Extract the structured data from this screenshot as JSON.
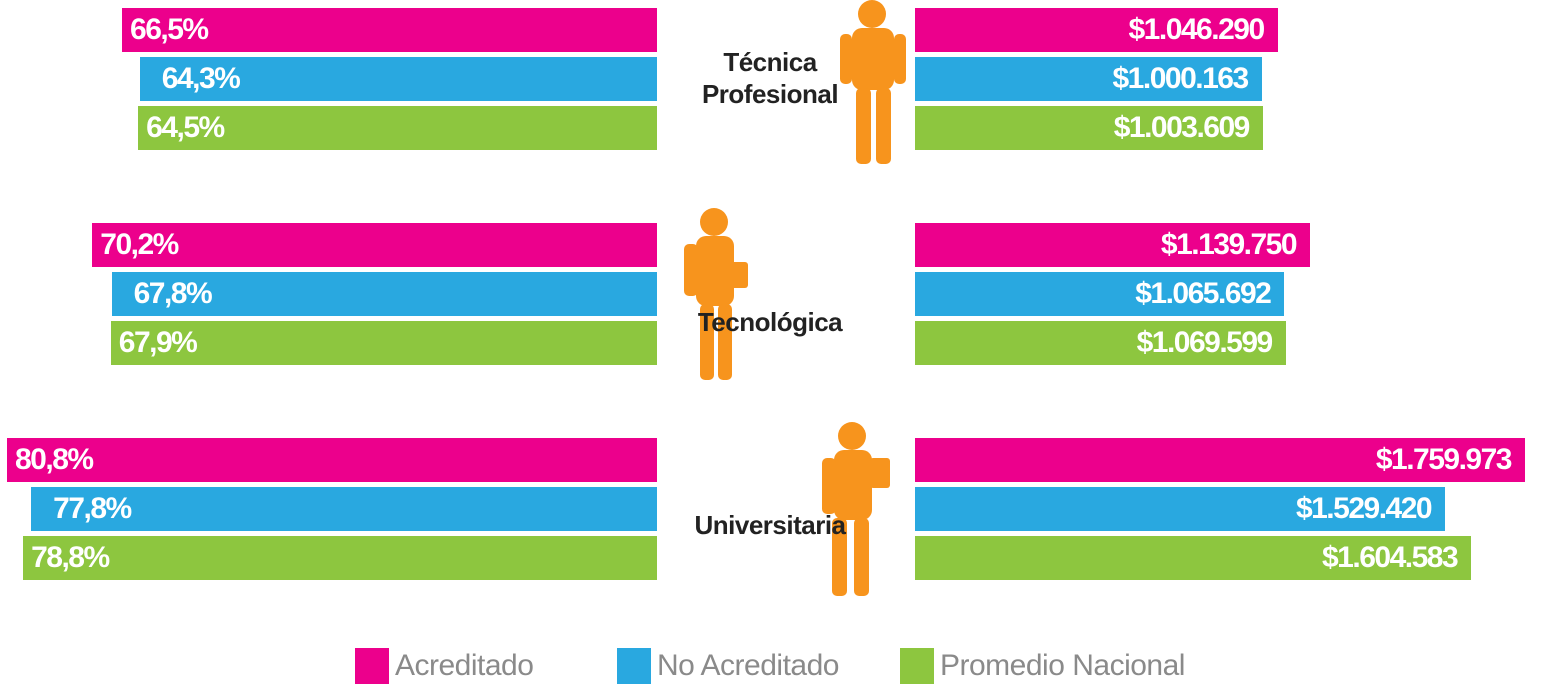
{
  "chart_data": [
    {
      "type": "bar",
      "categories": [
        "Técnica Profesional",
        "Tecnológica",
        "Universitaria"
      ],
      "series": [
        {
          "name": "Acreditado",
          "color": "#ec008c",
          "values": [
            66.5,
            70.2,
            80.8
          ],
          "value_labels": [
            "66,5%",
            "70,2%",
            "80,8%"
          ]
        },
        {
          "name": "No Acreditado",
          "color": "#29a8e0",
          "values": [
            64.3,
            67.8,
            77.8
          ],
          "value_labels": [
            "64,3%",
            "67,8%",
            "77,8%"
          ]
        },
        {
          "name": "Promedio Nacional",
          "color": "#8dc63f",
          "values": [
            64.5,
            67.9,
            78.8
          ],
          "value_labels": [
            "64,5%",
            "67,9%",
            "78,8%"
          ]
        }
      ]
    },
    {
      "type": "bar",
      "series": [
        {
          "color": "#ec008c",
          "values": [
            1046290,
            1139750,
            1759973
          ],
          "value_labels": [
            "$1.046.290",
            "$1.139.750",
            "$1.759.973"
          ]
        },
        {
          "color": "#29a8e0",
          "values": [
            1000163,
            1065692,
            1529420
          ],
          "value_labels": [
            "$1.000.163",
            "$1.065.692",
            "$1.529.420"
          ]
        },
        {
          "color": "#8dc63f",
          "values": [
            1003609,
            1069599,
            1604583
          ],
          "value_labels": [
            "$1.003.609",
            "$1.069.599",
            "$1.604.583"
          ]
        }
      ]
    }
  ]
}
